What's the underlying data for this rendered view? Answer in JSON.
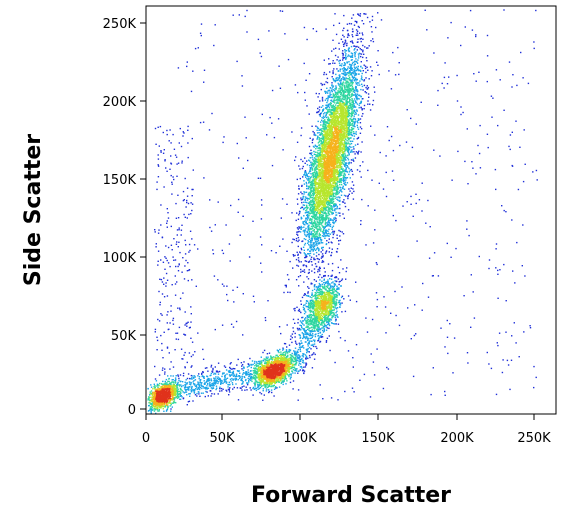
{
  "chart_data": {
    "type": "scatter",
    "title": "",
    "xlabel": "Forward Scatter",
    "ylabel": "Side Scatter",
    "xlim": [
      0,
      262000
    ],
    "ylim": [
      -4000,
      262000
    ],
    "x_ticks": [
      {
        "value": 0,
        "label": "0"
      },
      {
        "value": 50000,
        "label": "50K"
      },
      {
        "value": 100000,
        "label": "100K"
      },
      {
        "value": 150000,
        "label": "150K"
      },
      {
        "value": 200000,
        "label": "200K"
      },
      {
        "value": 250000,
        "label": "250K"
      }
    ],
    "y_ticks": [
      {
        "value": 0,
        "label": "0"
      },
      {
        "value": 50000,
        "label": "50K"
      },
      {
        "value": 100000,
        "label": "100K"
      },
      {
        "value": 150000,
        "label": "150K"
      },
      {
        "value": 200000,
        "label": "200K"
      },
      {
        "value": 250000,
        "label": "250K"
      }
    ],
    "grid": false,
    "legend": "none",
    "color_scale": [
      "#1f2fd8",
      "#1aa4e8",
      "#2fd6a0",
      "#b7e62e",
      "#f6b21c",
      "#e0321c"
    ],
    "populations": [
      {
        "x": [
          108000,
          135000
        ],
        "y": [
          100000,
          240000
        ],
        "density": "high"
      },
      {
        "x": [
          108000,
          118000
        ],
        "y": [
          55000,
          80000
        ],
        "density": "medium"
      },
      {
        "x": [
          75000,
          90000
        ],
        "y": [
          15000,
          35000
        ],
        "density": "high"
      },
      {
        "x": [
          5000,
          15000
        ],
        "y": [
          3000,
          15000
        ],
        "density": "high"
      }
    ]
  }
}
